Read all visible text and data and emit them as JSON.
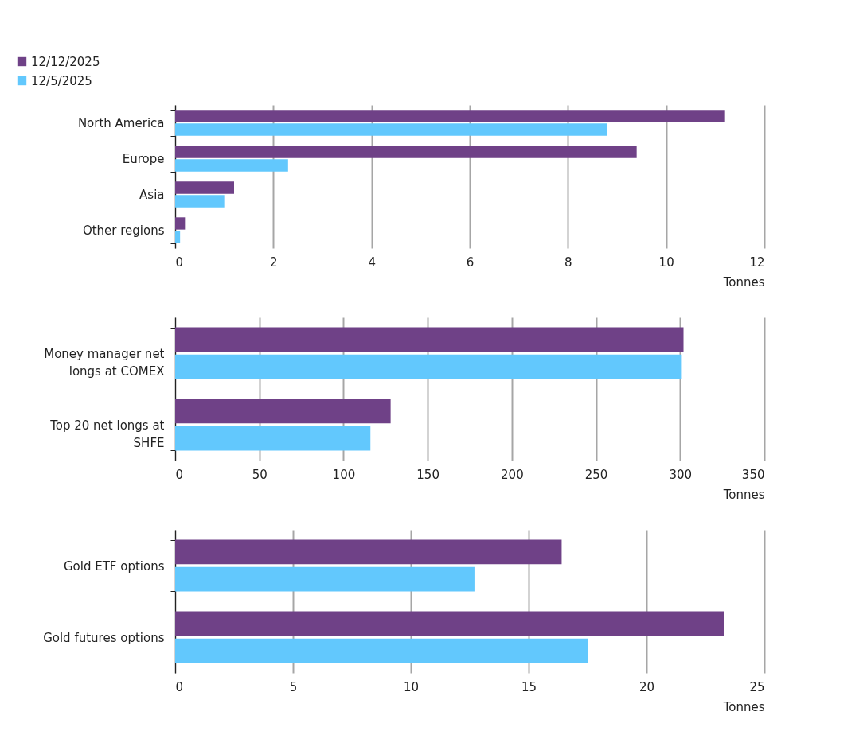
{
  "chart_data": [
    {
      "type": "bar",
      "orientation": "horizontal",
      "categories": [
        "North America",
        "Europe",
        "Asia",
        "Other regions"
      ],
      "series": [
        {
          "name": "12/12/2025",
          "color": "#6f4187",
          "values": [
            11.2,
            9.4,
            1.2,
            0.2
          ]
        },
        {
          "name": "12/5/2025",
          "color": "#62c8fd",
          "values": [
            8.8,
            2.3,
            1.0,
            0.1
          ]
        }
      ],
      "xlabel": "Tonnes",
      "xlim": [
        0,
        12
      ],
      "xticks": [
        0,
        2,
        4,
        6,
        8,
        10,
        12
      ],
      "grid": "x",
      "legend": "top left"
    },
    {
      "type": "bar",
      "orientation": "horizontal",
      "categories": [
        "Money manager net longs at COMEX",
        "Top 20 net longs at SHFE"
      ],
      "series": [
        {
          "color": "#6f4187",
          "values": [
            302,
            128
          ]
        },
        {
          "color": "#62c8fd",
          "values": [
            301,
            116
          ]
        }
      ],
      "xlabel": "Tonnes",
      "xlim": [
        0,
        350
      ],
      "xticks": [
        0,
        50,
        100,
        150,
        200,
        250,
        300,
        350
      ],
      "grid": "x"
    },
    {
      "type": "bar",
      "orientation": "horizontal",
      "categories": [
        "Gold ETF options",
        "Gold futures options"
      ],
      "series": [
        {
          "color": "#6f4187",
          "values": [
            16.4,
            23.3
          ]
        },
        {
          "color": "#62c8fd",
          "values": [
            12.7,
            17.5
          ]
        }
      ],
      "xlabel": "Tonnes",
      "xlim": [
        0,
        25
      ],
      "xticks": [
        0,
        5,
        10,
        15,
        20,
        25
      ],
      "grid": "x"
    }
  ]
}
